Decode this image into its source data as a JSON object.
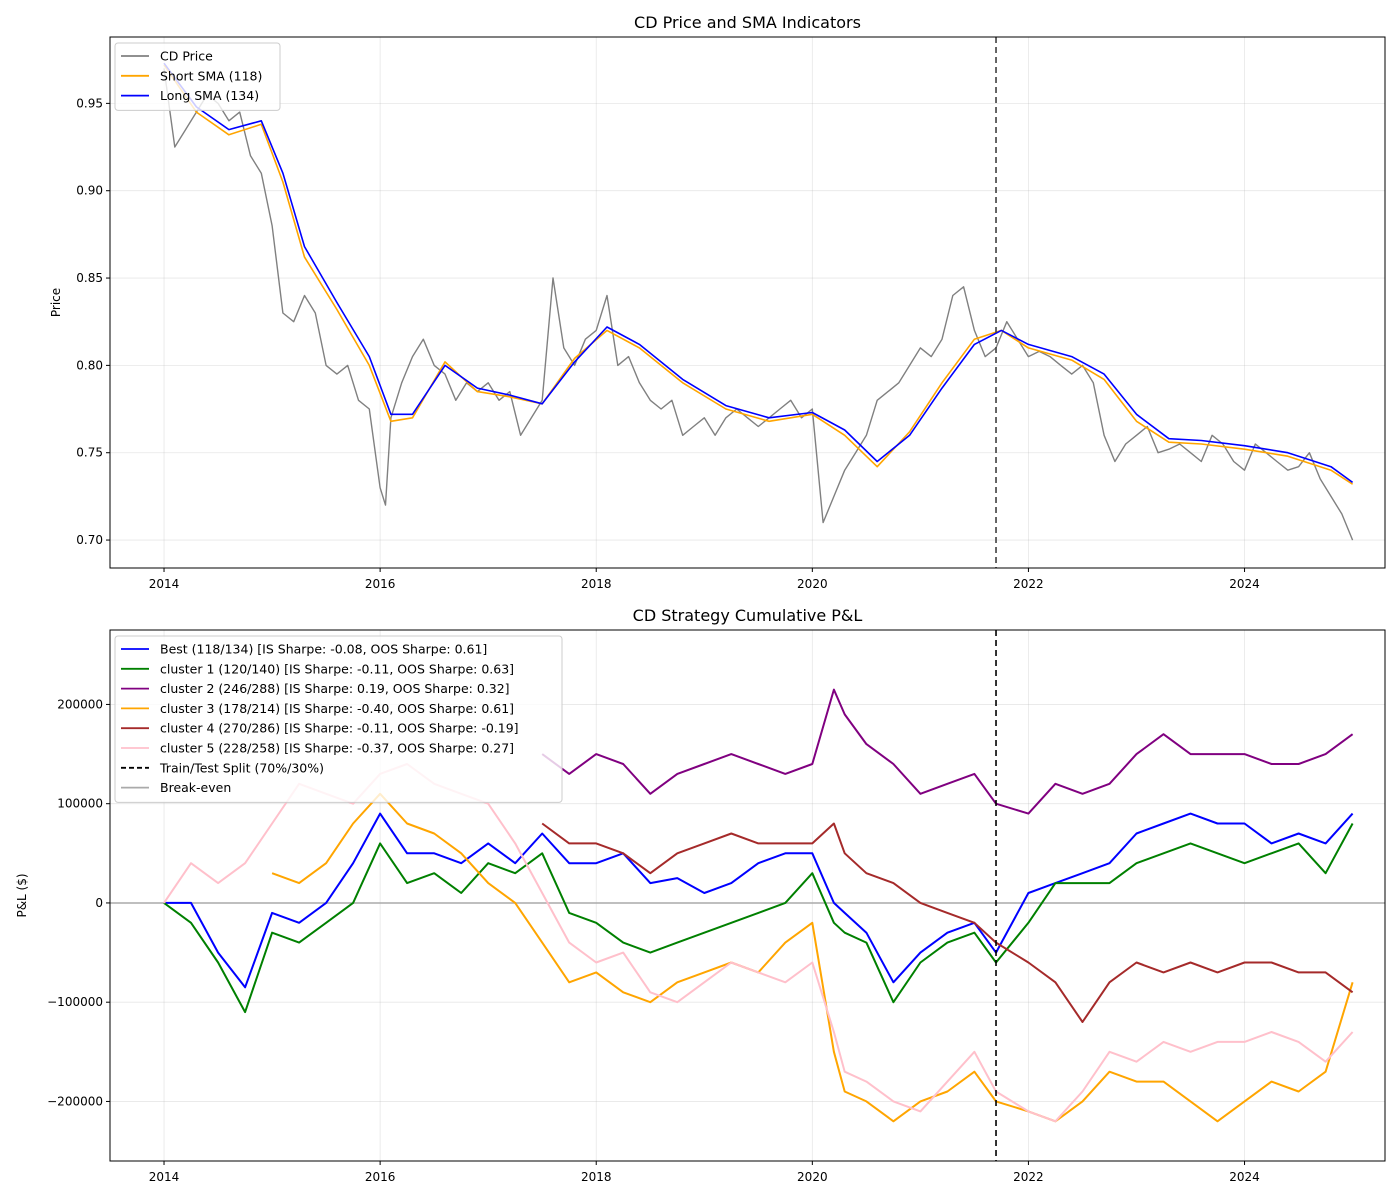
{
  "chart_data": [
    {
      "type": "line",
      "title": "CD Price and SMA Indicators",
      "xlabel": "",
      "ylabel": "Price",
      "xlim": [
        2013.5,
        2025.3
      ],
      "ylim": [
        0.684,
        0.988
      ],
      "x_ticks": [
        2014,
        2016,
        2018,
        2020,
        2022,
        2024
      ],
      "x_tick_labels": [
        "2014",
        "2016",
        "2018",
        "2020",
        "2022",
        "2024"
      ],
      "y_ticks": [
        0.7,
        0.75,
        0.8,
        0.85,
        0.9,
        0.95
      ],
      "y_tick_labels": [
        "0.70",
        "0.75",
        "0.80",
        "0.85",
        "0.90",
        "0.95"
      ],
      "grid": true,
      "legend_position": "top-left",
      "vline": {
        "x": 2021.7,
        "style": "dashed",
        "color": "#404040"
      },
      "series": [
        {
          "name": "CD Price",
          "color": "#808080",
          "width": 1.4,
          "x": [
            2014.0,
            2014.1,
            2014.2,
            2014.3,
            2014.4,
            2014.5,
            2014.6,
            2014.7,
            2014.8,
            2014.9,
            2015.0,
            2015.1,
            2015.2,
            2015.3,
            2015.4,
            2015.5,
            2015.6,
            2015.7,
            2015.8,
            2015.9,
            2016.0,
            2016.05,
            2016.1,
            2016.2,
            2016.3,
            2016.4,
            2016.5,
            2016.6,
            2016.7,
            2016.8,
            2016.9,
            2017.0,
            2017.1,
            2017.2,
            2017.3,
            2017.4,
            2017.5,
            2017.6,
            2017.7,
            2017.8,
            2017.9,
            2018.0,
            2018.1,
            2018.2,
            2018.3,
            2018.4,
            2018.5,
            2018.6,
            2018.7,
            2018.8,
            2018.9,
            2019.0,
            2019.1,
            2019.2,
            2019.3,
            2019.4,
            2019.5,
            2019.6,
            2019.7,
            2019.8,
            2019.9,
            2020.0,
            2020.1,
            2020.2,
            2020.3,
            2020.4,
            2020.5,
            2020.6,
            2020.7,
            2020.8,
            2020.9,
            2021.0,
            2021.1,
            2021.2,
            2021.3,
            2021.4,
            2021.5,
            2021.6,
            2021.7,
            2021.8,
            2021.9,
            2022.0,
            2022.1,
            2022.2,
            2022.3,
            2022.4,
            2022.5,
            2022.6,
            2022.7,
            2022.8,
            2022.9,
            2023.0,
            2023.1,
            2023.2,
            2023.3,
            2023.4,
            2023.5,
            2023.6,
            2023.7,
            2023.8,
            2023.9,
            2024.0,
            2024.1,
            2024.2,
            2024.3,
            2024.4,
            2024.5,
            2024.6,
            2024.7,
            2024.8,
            2024.9,
            2025.0
          ],
          "y": [
            0.97,
            0.925,
            0.935,
            0.945,
            0.955,
            0.95,
            0.94,
            0.945,
            0.92,
            0.91,
            0.88,
            0.83,
            0.825,
            0.84,
            0.83,
            0.8,
            0.795,
            0.8,
            0.78,
            0.775,
            0.73,
            0.72,
            0.77,
            0.79,
            0.805,
            0.815,
            0.8,
            0.795,
            0.78,
            0.79,
            0.785,
            0.79,
            0.78,
            0.785,
            0.76,
            0.77,
            0.78,
            0.85,
            0.81,
            0.8,
            0.815,
            0.82,
            0.84,
            0.8,
            0.805,
            0.79,
            0.78,
            0.775,
            0.78,
            0.76,
            0.765,
            0.77,
            0.76,
            0.77,
            0.775,
            0.77,
            0.765,
            0.77,
            0.775,
            0.78,
            0.77,
            0.775,
            0.71,
            0.725,
            0.74,
            0.75,
            0.76,
            0.78,
            0.785,
            0.79,
            0.8,
            0.81,
            0.805,
            0.815,
            0.84,
            0.845,
            0.82,
            0.805,
            0.81,
            0.825,
            0.815,
            0.805,
            0.808,
            0.805,
            0.8,
            0.795,
            0.8,
            0.79,
            0.76,
            0.745,
            0.755,
            0.76,
            0.765,
            0.75,
            0.752,
            0.755,
            0.75,
            0.745,
            0.76,
            0.755,
            0.745,
            0.74,
            0.755,
            0.75,
            0.745,
            0.74,
            0.742,
            0.75,
            0.735,
            0.725,
            0.715,
            0.7
          ]
        },
        {
          "name": "Short SMA (118)",
          "color": "#ffa500",
          "width": 1.6,
          "x": [
            2014.0,
            2014.3,
            2014.6,
            2014.9,
            2015.1,
            2015.3,
            2015.6,
            2015.9,
            2016.1,
            2016.3,
            2016.6,
            2016.9,
            2017.2,
            2017.5,
            2017.8,
            2018.1,
            2018.4,
            2018.8,
            2019.2,
            2019.6,
            2020.0,
            2020.3,
            2020.6,
            2020.9,
            2021.2,
            2021.5,
            2021.75,
            2022.0,
            2022.4,
            2022.7,
            2023.0,
            2023.3,
            2023.6,
            2024.0,
            2024.4,
            2024.8,
            2025.0
          ],
          "y": [
            0.972,
            0.945,
            0.932,
            0.938,
            0.905,
            0.862,
            0.832,
            0.8,
            0.768,
            0.77,
            0.802,
            0.785,
            0.782,
            0.778,
            0.804,
            0.82,
            0.81,
            0.79,
            0.775,
            0.768,
            0.772,
            0.76,
            0.742,
            0.762,
            0.79,
            0.815,
            0.82,
            0.81,
            0.803,
            0.792,
            0.768,
            0.756,
            0.755,
            0.752,
            0.748,
            0.74,
            0.732
          ]
        },
        {
          "name": "Long SMA (134)",
          "color": "#0000ff",
          "width": 1.6,
          "x": [
            2014.0,
            2014.3,
            2014.6,
            2014.9,
            2015.1,
            2015.3,
            2015.6,
            2015.9,
            2016.1,
            2016.3,
            2016.6,
            2016.9,
            2017.2,
            2017.5,
            2017.8,
            2018.1,
            2018.4,
            2018.8,
            2019.2,
            2019.6,
            2020.0,
            2020.3,
            2020.6,
            2020.9,
            2021.2,
            2021.5,
            2021.75,
            2022.0,
            2022.4,
            2022.7,
            2023.0,
            2023.3,
            2023.6,
            2024.0,
            2024.4,
            2024.8,
            2025.0
          ],
          "y": [
            0.973,
            0.948,
            0.935,
            0.94,
            0.91,
            0.868,
            0.836,
            0.805,
            0.772,
            0.772,
            0.8,
            0.787,
            0.783,
            0.778,
            0.802,
            0.822,
            0.812,
            0.792,
            0.777,
            0.77,
            0.773,
            0.763,
            0.745,
            0.76,
            0.787,
            0.812,
            0.82,
            0.812,
            0.805,
            0.795,
            0.772,
            0.758,
            0.757,
            0.754,
            0.75,
            0.742,
            0.733
          ]
        }
      ]
    },
    {
      "type": "line",
      "title": "CD Strategy Cumulative P&L",
      "xlabel": "",
      "ylabel": "P&L ($)",
      "xlim": [
        2013.5,
        2025.3
      ],
      "ylim": [
        -260000,
        275000
      ],
      "x_ticks": [
        2014,
        2016,
        2018,
        2020,
        2022,
        2024
      ],
      "x_tick_labels": [
        "2014",
        "2016",
        "2018",
        "2020",
        "2022",
        "2024"
      ],
      "y_ticks": [
        -200000,
        -100000,
        0,
        100000,
        200000
      ],
      "y_tick_labels": [
        "−200000",
        "−100000",
        "0",
        "100000",
        "200000"
      ],
      "grid": true,
      "legend_position": "top-left",
      "vline": {
        "x": 2021.7,
        "style": "dashed",
        "color": "#000000",
        "name": "Train/Test Split (70%/30%)"
      },
      "hline": {
        "y": 0,
        "color": "#aaaaaa",
        "name": "Break-even"
      },
      "x": [
        2014.0,
        2014.25,
        2014.5,
        2014.75,
        2015.0,
        2015.25,
        2015.5,
        2015.75,
        2016.0,
        2016.25,
        2016.5,
        2016.75,
        2017.0,
        2017.25,
        2017.5,
        2017.75,
        2018.0,
        2018.25,
        2018.5,
        2018.75,
        2019.0,
        2019.25,
        2019.5,
        2019.75,
        2020.0,
        2020.2,
        2020.3,
        2020.5,
        2020.75,
        2021.0,
        2021.25,
        2021.5,
        2021.7,
        2022.0,
        2022.25,
        2022.5,
        2022.75,
        2023.0,
        2023.25,
        2023.5,
        2023.75,
        2024.0,
        2024.25,
        2024.5,
        2024.75,
        2025.0
      ],
      "series": [
        {
          "name": "Best (118/134) [IS Sharpe: -0.08, OOS Sharpe: 0.61]",
          "color": "#0000ff",
          "width": 2,
          "values": [
            0,
            0,
            -50000,
            -85000,
            -10000,
            -20000,
            0,
            40000,
            90000,
            50000,
            50000,
            40000,
            60000,
            40000,
            70000,
            40000,
            40000,
            50000,
            20000,
            25000,
            10000,
            20000,
            40000,
            50000,
            50000,
            0,
            -10000,
            -30000,
            -80000,
            -50000,
            -30000,
            -20000,
            -50000,
            10000,
            20000,
            30000,
            40000,
            70000,
            80000,
            90000,
            80000,
            80000,
            60000,
            70000,
            60000,
            90000
          ]
        },
        {
          "name": "cluster 1 (120/140) [IS Sharpe: -0.11, OOS Sharpe: 0.63]",
          "color": "#008000",
          "width": 2,
          "values": [
            0,
            -20000,
            -60000,
            -110000,
            -30000,
            -40000,
            -20000,
            0,
            60000,
            20000,
            30000,
            10000,
            40000,
            30000,
            50000,
            -10000,
            -20000,
            -40000,
            -50000,
            -40000,
            -30000,
            -20000,
            -10000,
            0,
            30000,
            -20000,
            -30000,
            -40000,
            -100000,
            -60000,
            -40000,
            -30000,
            -60000,
            -20000,
            20000,
            20000,
            20000,
            40000,
            50000,
            60000,
            50000,
            40000,
            50000,
            60000,
            30000,
            80000
          ]
        },
        {
          "name": "cluster 2 (246/288) [IS Sharpe: 0.19, OOS Sharpe: 0.32]",
          "color": "#800080",
          "width": 2,
          "values": [
            null,
            null,
            null,
            null,
            null,
            null,
            null,
            null,
            null,
            null,
            null,
            null,
            null,
            null,
            150000,
            130000,
            150000,
            140000,
            110000,
            130000,
            140000,
            150000,
            140000,
            130000,
            140000,
            215000,
            190000,
            160000,
            140000,
            110000,
            120000,
            130000,
            100000,
            90000,
            120000,
            110000,
            120000,
            150000,
            170000,
            150000,
            150000,
            150000,
            140000,
            140000,
            150000,
            170000
          ]
        },
        {
          "name": "cluster 3 (178/214) [IS Sharpe: -0.40, OOS Sharpe: 0.61]",
          "color": "#ffa500",
          "width": 2,
          "values": [
            null,
            null,
            null,
            null,
            30000,
            20000,
            40000,
            80000,
            110000,
            80000,
            70000,
            50000,
            20000,
            0,
            -40000,
            -80000,
            -70000,
            -90000,
            -100000,
            -80000,
            -70000,
            -60000,
            -70000,
            -40000,
            -20000,
            -150000,
            -190000,
            -200000,
            -220000,
            -200000,
            -190000,
            -170000,
            -200000,
            -210000,
            -220000,
            -200000,
            -170000,
            -180000,
            -180000,
            -200000,
            -220000,
            -200000,
            -180000,
            -190000,
            -170000,
            -80000
          ]
        },
        {
          "name": "cluster 4 (270/286) [IS Sharpe: -0.11, OOS Sharpe: -0.19]",
          "color": "#a52a2a",
          "width": 2,
          "values": [
            null,
            null,
            null,
            null,
            null,
            null,
            null,
            null,
            null,
            null,
            null,
            null,
            null,
            null,
            80000,
            60000,
            60000,
            50000,
            30000,
            50000,
            60000,
            70000,
            60000,
            60000,
            60000,
            80000,
            50000,
            30000,
            20000,
            0,
            -10000,
            -20000,
            -40000,
            -60000,
            -80000,
            -120000,
            -80000,
            -60000,
            -70000,
            -60000,
            -70000,
            -60000,
            -60000,
            -70000,
            -70000,
            -90000
          ]
        },
        {
          "name": "cluster 5 (228/258) [IS Sharpe: -0.37, OOS Sharpe: 0.27]",
          "color": "#ffc0cb",
          "width": 2,
          "values": [
            0,
            40000,
            20000,
            40000,
            80000,
            120000,
            110000,
            100000,
            130000,
            140000,
            120000,
            110000,
            100000,
            60000,
            10000,
            -40000,
            -60000,
            -50000,
            -90000,
            -100000,
            -80000,
            -60000,
            -70000,
            -80000,
            -60000,
            -130000,
            -170000,
            -180000,
            -200000,
            -210000,
            -180000,
            -150000,
            -190000,
            -210000,
            -220000,
            -190000,
            -150000,
            -160000,
            -140000,
            -150000,
            -140000,
            -140000,
            -130000,
            -140000,
            -160000,
            -130000
          ]
        }
      ]
    }
  ],
  "legend_extra": [
    {
      "label": "Train/Test Split (70%/30%)",
      "color": "#000000",
      "dashed": true
    },
    {
      "label": "Break-even",
      "color": "#aaaaaa",
      "dashed": false
    }
  ]
}
